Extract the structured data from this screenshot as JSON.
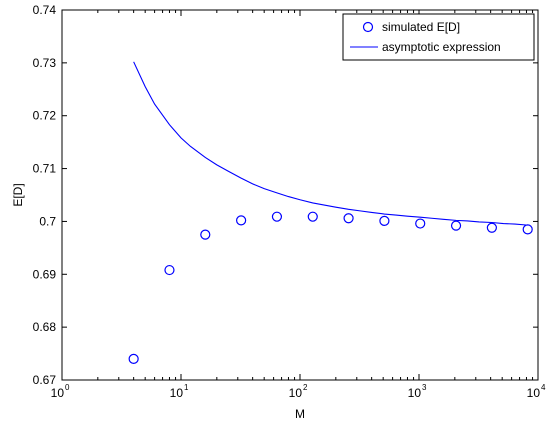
{
  "chart_data": {
    "type": "line",
    "xlabel": "M",
    "ylabel": "E[D]",
    "x_scale": "log",
    "xlim": [
      1,
      10000
    ],
    "ylim": [
      0.67,
      0.74
    ],
    "x_ticks": [
      {
        "value": 1,
        "base": "10",
        "exp": "0"
      },
      {
        "value": 10,
        "base": "10",
        "exp": "1"
      },
      {
        "value": 100,
        "base": "10",
        "exp": "2"
      },
      {
        "value": 1000,
        "base": "10",
        "exp": "3"
      },
      {
        "value": 10000,
        "base": "10",
        "exp": "4"
      }
    ],
    "y_ticks": [
      "0.67",
      "0.68",
      "0.69",
      "0.7",
      "0.71",
      "0.72",
      "0.73",
      "0.74"
    ],
    "grid": false,
    "legend_position": "top-right",
    "series": [
      {
        "name": "simulated E[D]",
        "style": "markers",
        "marker": "circle",
        "color": "#0000ff",
        "x": [
          4,
          8,
          16,
          32,
          64,
          128,
          256,
          512,
          1024,
          2048,
          4096,
          8192
        ],
        "y": [
          0.674,
          0.6908,
          0.6975,
          0.7002,
          0.7009,
          0.7009,
          0.7006,
          0.7001,
          0.6996,
          0.6992,
          0.6988,
          0.6985
        ]
      },
      {
        "name": "asymptotic expression",
        "style": "line",
        "color": "#0000ff",
        "x": [
          4,
          5,
          6,
          8,
          10,
          12,
          16,
          20,
          25,
          32,
          40,
          50,
          64,
          80,
          100,
          128,
          160,
          200,
          256,
          320,
          400,
          512,
          640,
          800,
          1024,
          1280,
          1600,
          2048,
          2560,
          3200,
          4096,
          5120,
          6400,
          8192
        ],
        "y": [
          0.7302,
          0.7255,
          0.7222,
          0.7183,
          0.7158,
          0.7142,
          0.7121,
          0.7107,
          0.7095,
          0.7082,
          0.7071,
          0.7062,
          0.7054,
          0.7047,
          0.7041,
          0.7035,
          0.7031,
          0.7027,
          0.7023,
          0.702,
          0.7017,
          0.7014,
          0.7012,
          0.701,
          0.7008,
          0.7006,
          0.7004,
          0.7002,
          0.7001,
          0.6999,
          0.6998,
          0.6996,
          0.6995,
          0.6993
        ]
      }
    ]
  }
}
